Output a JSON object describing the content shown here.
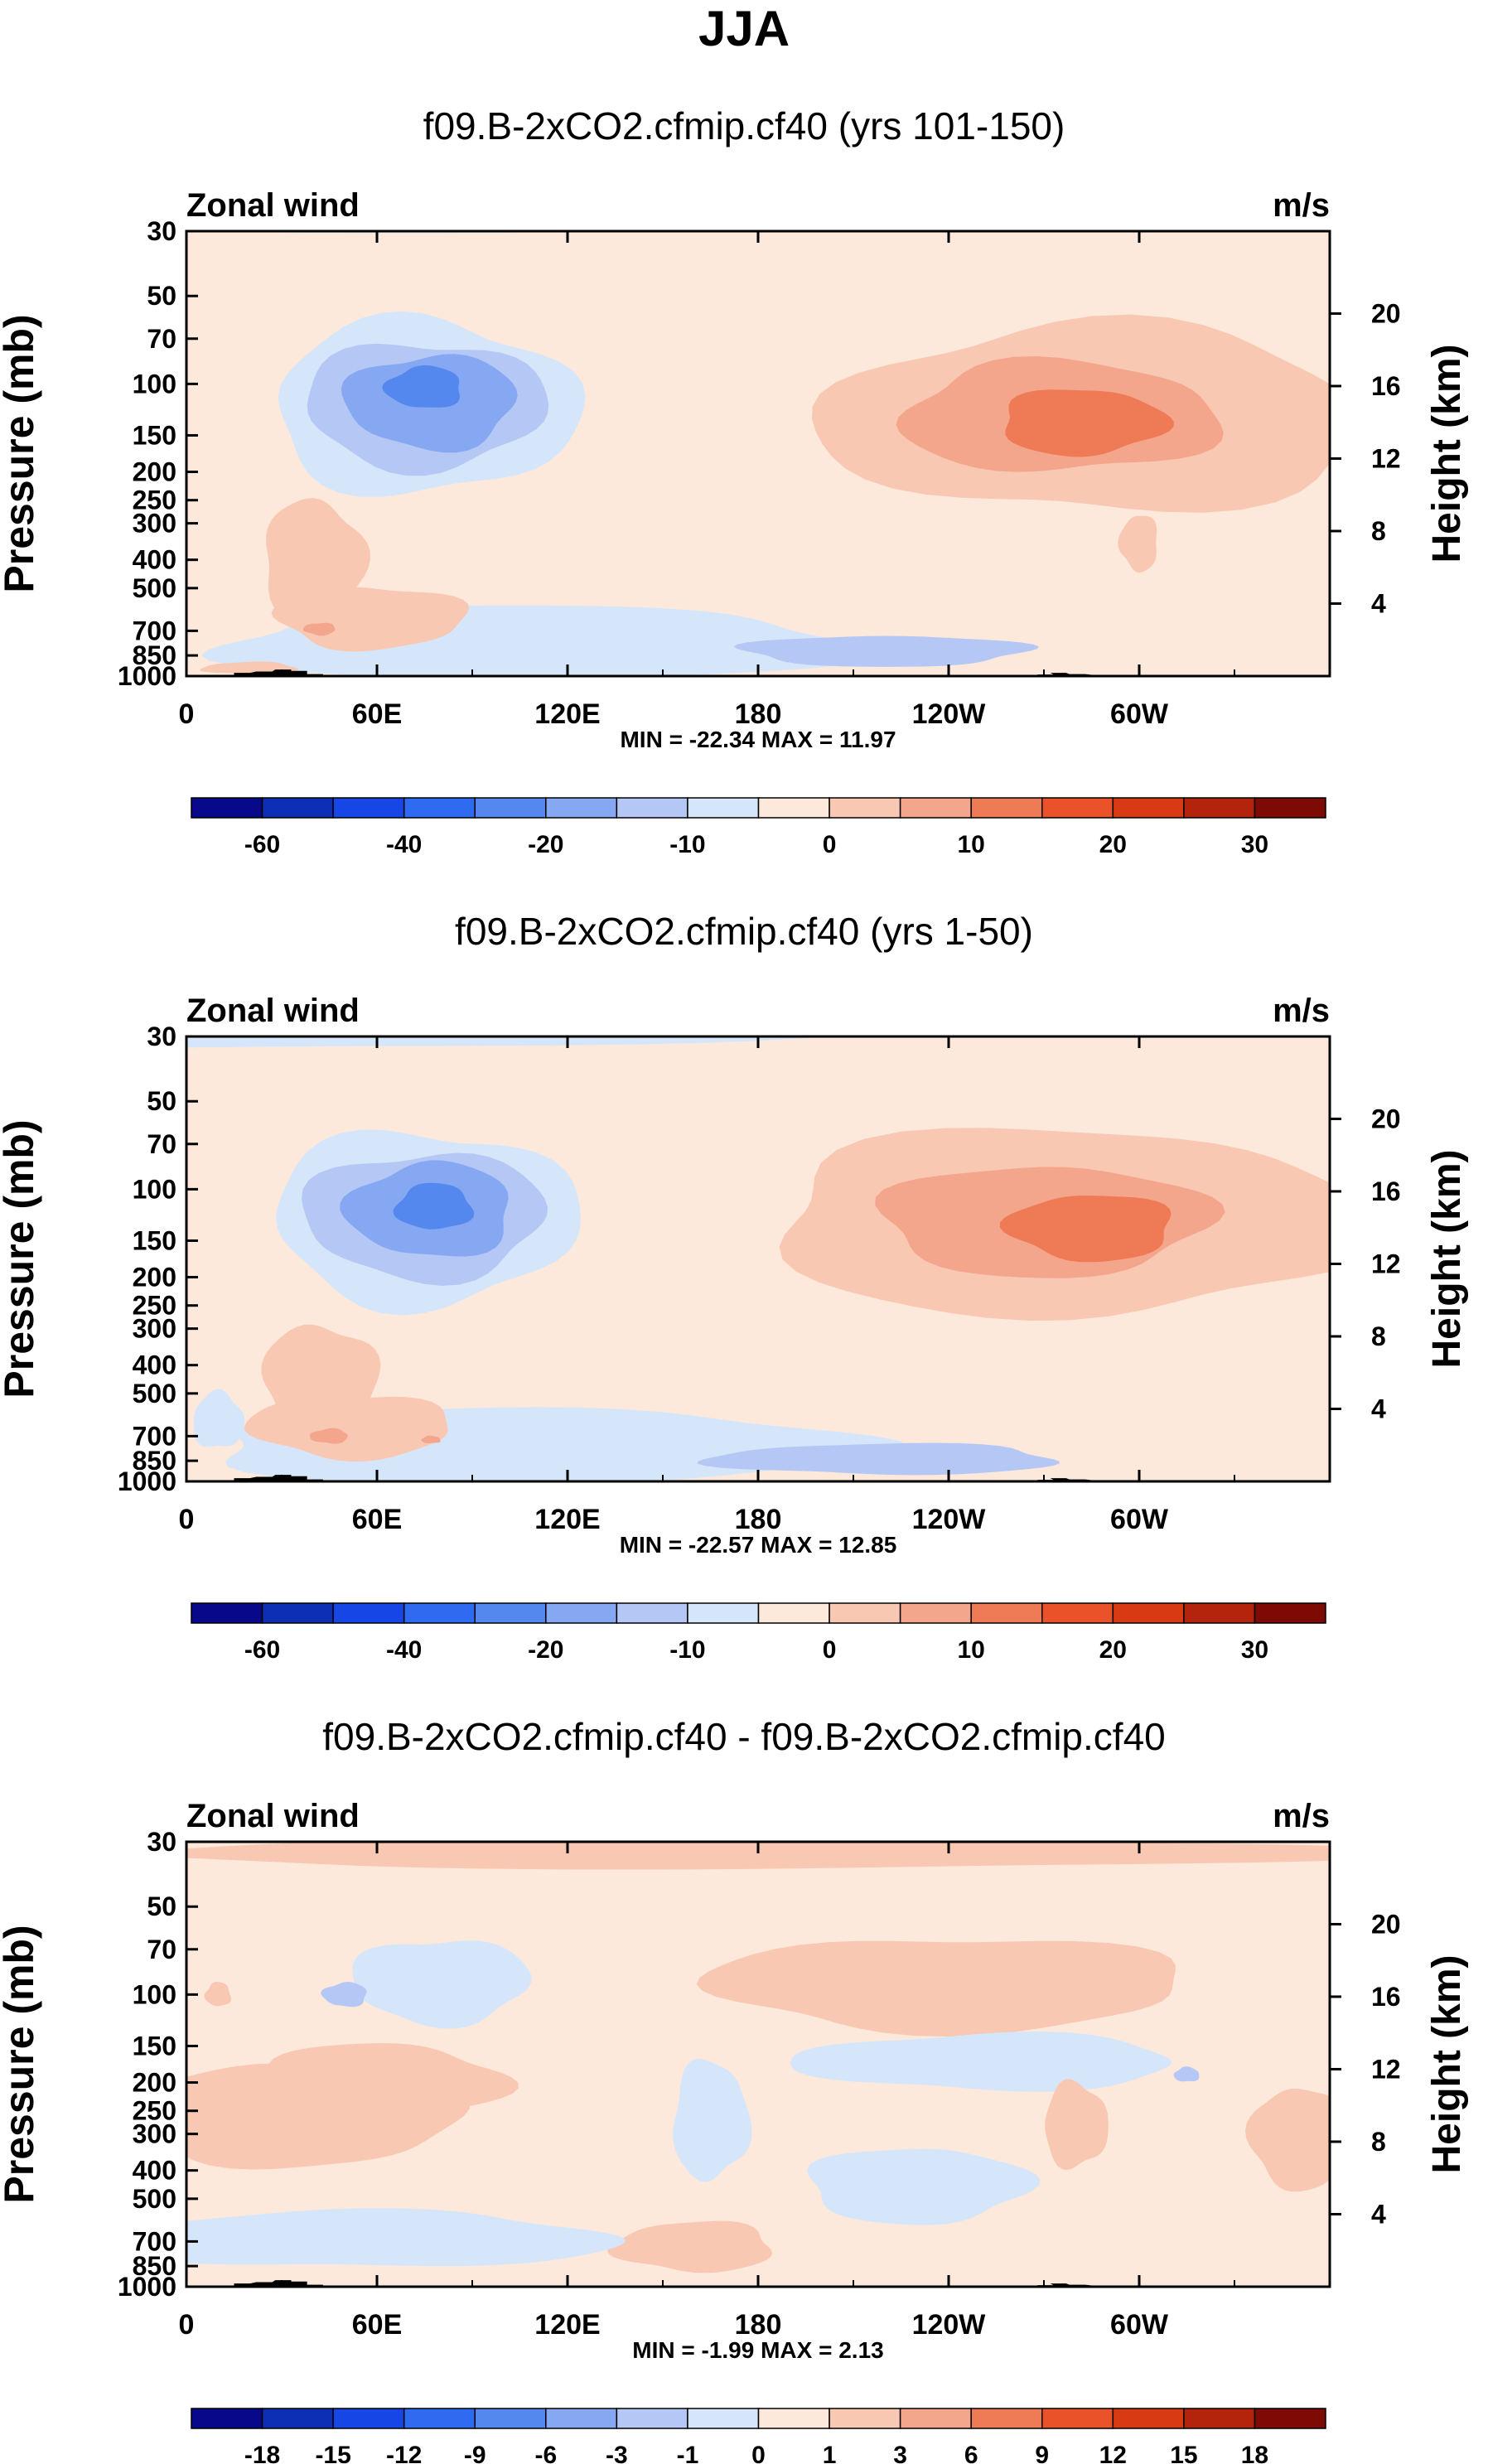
{
  "figure_title": "JJA",
  "chart_data": [
    {
      "type": "heatmap",
      "title": "f09.B-2xCO2.cfmip.cf40 (yrs 101-150)",
      "left_label": "Zonal wind",
      "right_label": "m/s",
      "ylabel": "Pressure (mb)",
      "ylabel_right": "Height (km)",
      "x_ticks": [
        "0",
        "60E",
        "120E",
        "180",
        "120W",
        "60W"
      ],
      "y_ticks": [
        "30",
        "50",
        "70",
        "100",
        "150",
        "200",
        "250",
        "300",
        "400",
        "500",
        "700",
        "850",
        "1000"
      ],
      "y_ticks_right": [
        "20",
        "16",
        "12",
        "8",
        "4"
      ],
      "stats": "MIN = -22.34  MAX =  11.97",
      "colorbar_labels": [
        "-60",
        "-40",
        "-20",
        "-10",
        "0",
        "10",
        "20",
        "30"
      ],
      "zmin": -22.34,
      "zmax": 11.97
    },
    {
      "type": "heatmap",
      "title": "f09.B-2xCO2.cfmip.cf40 (yrs 1-50)",
      "left_label": "Zonal wind",
      "right_label": "m/s",
      "ylabel": "Pressure (mb)",
      "ylabel_right": "Height (km)",
      "x_ticks": [
        "0",
        "60E",
        "120E",
        "180",
        "120W",
        "60W"
      ],
      "y_ticks": [
        "30",
        "50",
        "70",
        "100",
        "150",
        "200",
        "250",
        "300",
        "400",
        "500",
        "700",
        "850",
        "1000"
      ],
      "y_ticks_right": [
        "20",
        "16",
        "12",
        "8",
        "4"
      ],
      "stats": "MIN = -22.57  MAX =  12.85",
      "colorbar_labels": [
        "-60",
        "-40",
        "-20",
        "-10",
        "0",
        "10",
        "20",
        "30"
      ],
      "zmin": -22.57,
      "zmax": 12.85
    },
    {
      "type": "heatmap",
      "title": "f09.B-2xCO2.cfmip.cf40 - f09.B-2xCO2.cfmip.cf40",
      "left_label": "Zonal wind",
      "right_label": "m/s",
      "ylabel": "Pressure (mb)",
      "ylabel_right": "Height (km)",
      "x_ticks": [
        "0",
        "60E",
        "120E",
        "180",
        "120W",
        "60W"
      ],
      "y_ticks": [
        "30",
        "50",
        "70",
        "100",
        "150",
        "200",
        "250",
        "300",
        "400",
        "500",
        "700",
        "850",
        "1000"
      ],
      "y_ticks_right": [
        "20",
        "16",
        "12",
        "8",
        "4"
      ],
      "stats": "MIN =  -1.99  MAX =   2.13",
      "colorbar_labels": [
        "-18",
        "-15",
        "-12",
        "-9",
        "-6",
        "-3",
        "-1",
        "0",
        "1",
        "3",
        "6",
        "9",
        "12",
        "15",
        "18"
      ],
      "zmin": -1.99,
      "zmax": 2.13
    }
  ],
  "colors": {
    "scale": [
      "#08088a",
      "#0d2fb5",
      "#1746e6",
      "#2f6bf0",
      "#5588ee",
      "#86a8f2",
      "#b5c8f5",
      "#d6e6fa",
      "#fce9db",
      "#f8c8b3",
      "#f4a68c",
      "#ef7a56",
      "#ea5329",
      "#d83a14",
      "#b4240c",
      "#7d0a05"
    ],
    "neutral_pos": "#fce9db",
    "neutral_neg": "#d6e6fa",
    "topography": "#000000"
  }
}
